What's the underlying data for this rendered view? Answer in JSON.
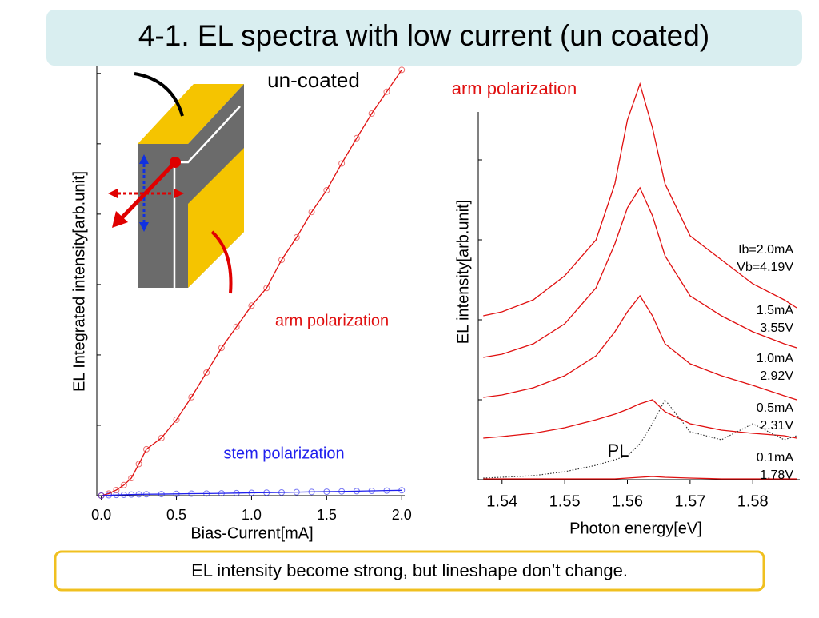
{
  "title": "4-1. EL spectra with low current (un coated)",
  "note": "EL intensity become strong, but lineshape don’t change.",
  "diagram": {
    "label": "un-coated"
  },
  "chart_data": [
    {
      "type": "line",
      "xlabel": "Bias-Current[mA]",
      "ylabel": "EL Integrated intensity[arb.unit]",
      "x": [
        0,
        0.05,
        0.1,
        0.15,
        0.2,
        0.25,
        0.3,
        0.4,
        0.5,
        0.6,
        0.7,
        0.8,
        0.9,
        1.0,
        1.1,
        1.2,
        1.3,
        1.4,
        1.5,
        1.6,
        1.7,
        1.8,
        1.9,
        2.0
      ],
      "series": [
        {
          "name": "arm polarization",
          "color": "#e01010",
          "values": [
            0,
            0.03,
            0.08,
            0.15,
            0.25,
            0.45,
            0.66,
            0.82,
            1.08,
            1.4,
            1.75,
            2.1,
            2.4,
            2.7,
            2.95,
            3.35,
            3.67,
            4.03,
            4.34,
            4.72,
            5.08,
            5.43,
            5.74,
            6.05
          ]
        },
        {
          "name": "stem polarization",
          "color": "#2020ee",
          "values": [
            0,
            0.005,
            0.01,
            0.012,
            0.015,
            0.018,
            0.02,
            0.022,
            0.025,
            0.028,
            0.03,
            0.033,
            0.036,
            0.04,
            0.043,
            0.046,
            0.05,
            0.053,
            0.056,
            0.06,
            0.064,
            0.068,
            0.072,
            0.076
          ]
        }
      ],
      "markers": true,
      "xlim": [
        -0.03,
        2.02
      ],
      "xticks": [
        {
          "value": 0,
          "label": "0.0"
        },
        0.5,
        {
          "value": 1,
          "label": "1.0"
        },
        1.5,
        {
          "value": 2,
          "label": "2.0"
        }
      ],
      "ylim": [
        0,
        6.1
      ],
      "yticks": [
        0,
        1,
        2,
        3,
        4,
        5,
        6
      ]
    },
    {
      "type": "line",
      "title": "arm polarization",
      "xlabel": "Photon energy[eV]",
      "ylabel": "EL intensity[arb.unit]",
      "x": [
        1.537,
        1.54,
        1.545,
        1.55,
        1.555,
        1.558,
        1.56,
        1.562,
        1.564,
        1.566,
        1.57,
        1.575,
        1.58,
        1.585,
        1.587
      ],
      "series": [
        {
          "name": "Ib=2.0mA",
          "voltage": "Vb=4.19V",
          "color": "#e01010",
          "values": [
            2.05,
            2.1,
            2.25,
            2.55,
            3.0,
            3.7,
            4.5,
            4.95,
            4.4,
            3.7,
            3.05,
            2.75,
            2.45,
            2.25,
            2.15
          ]
        },
        {
          "name": "1.5mA",
          "voltage": "3.55V",
          "color": "#e01010",
          "values": [
            1.53,
            1.57,
            1.7,
            1.95,
            2.4,
            2.95,
            3.4,
            3.65,
            3.3,
            2.8,
            2.3,
            2.05,
            1.85,
            1.7,
            1.65
          ]
        },
        {
          "name": "1.0mA",
          "voltage": "2.92V",
          "color": "#e01010",
          "values": [
            1.03,
            1.06,
            1.15,
            1.3,
            1.55,
            1.85,
            2.1,
            2.3,
            2.05,
            1.7,
            1.45,
            1.3,
            1.18,
            1.05,
            1.0
          ]
        },
        {
          "name": "0.5mA",
          "voltage": "2.31V",
          "color": "#e01010",
          "values": [
            0.52,
            0.54,
            0.58,
            0.65,
            0.75,
            0.82,
            0.88,
            0.95,
            1.0,
            0.85,
            0.7,
            0.62,
            0.58,
            0.55,
            0.52
          ]
        },
        {
          "name": "0.1mA",
          "voltage": "1.78V",
          "color": "#e01010",
          "values": [
            0.01,
            0.01,
            0.01,
            0.01,
            0.01,
            0.01,
            0.02,
            0.03,
            0.04,
            0.03,
            0.02,
            0.01,
            0.01,
            0.01,
            0.01
          ]
        },
        {
          "name": "PL",
          "color": "#333333",
          "line_style": "dotted",
          "values": [
            0.02,
            0.03,
            0.05,
            0.1,
            0.18,
            0.25,
            0.3,
            0.45,
            0.7,
            1.0,
            0.6,
            0.5,
            0.7,
            0.5,
            0.55
          ]
        }
      ],
      "xlim": [
        1.5362,
        1.5875
      ],
      "xticks": [
        1.54,
        1.55,
        1.56,
        1.57,
        1.58
      ],
      "ylim": [
        0,
        4.6
      ],
      "yticks": [
        0,
        1,
        2,
        3,
        4
      ]
    }
  ]
}
